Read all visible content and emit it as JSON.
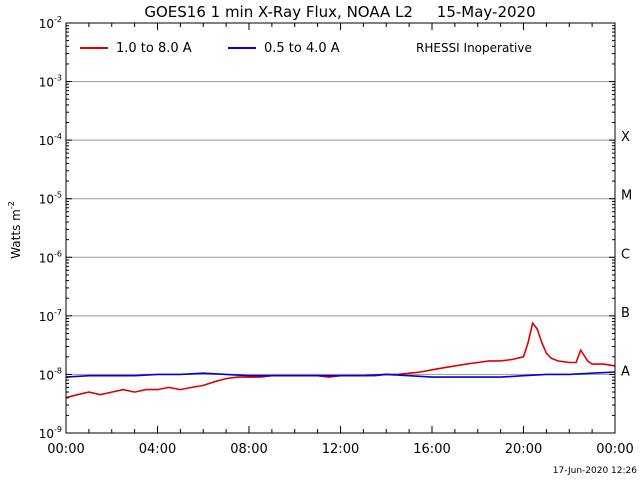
{
  "chart_data": {
    "type": "line",
    "title": "GOES16 1 min X-Ray Flux, NOAA L2     15-May-2020",
    "ylabel": "Watts m",
    "ylabel_sup": "-2",
    "xlabel": "",
    "y_scale": "log",
    "ylim": [
      1e-09,
      0.01
    ],
    "y_ticks": [
      {
        "value": 0.01,
        "base": "10",
        "exp": "-2"
      },
      {
        "value": 0.001,
        "base": "10",
        "exp": "-3"
      },
      {
        "value": 0.0001,
        "base": "10",
        "exp": "-4"
      },
      {
        "value": 1e-05,
        "base": "10",
        "exp": "-5"
      },
      {
        "value": 1e-06,
        "base": "10",
        "exp": "-6"
      },
      {
        "value": 1e-07,
        "base": "10",
        "exp": "-7"
      },
      {
        "value": 1e-08,
        "base": "10",
        "exp": "-8"
      },
      {
        "value": 1e-09,
        "base": "10",
        "exp": "-9"
      }
    ],
    "x_ticks": [
      {
        "hour": 0,
        "label": "00:00"
      },
      {
        "hour": 4,
        "label": "04:00"
      },
      {
        "hour": 8,
        "label": "08:00"
      },
      {
        "hour": 12,
        "label": "12:00"
      },
      {
        "hour": 16,
        "label": "16:00"
      },
      {
        "hour": 20,
        "label": "20:00"
      },
      {
        "hour": 24,
        "label": "00:00"
      }
    ],
    "xlim_hours": [
      0,
      24
    ],
    "flare_classes": [
      {
        "label": "X",
        "value": 0.0001
      },
      {
        "label": "M",
        "value": 1e-05
      },
      {
        "label": "C",
        "value": 1e-06
      },
      {
        "label": "B",
        "value": 1e-07
      },
      {
        "label": "A",
        "value": 1e-08
      }
    ],
    "grid_lines": [
      0.001,
      0.0001,
      1e-05,
      1e-06,
      1e-07,
      1e-08
    ],
    "legend_placement": "top",
    "annotation": "RHESSI Inoperative",
    "footer_timestamp": "17-Jun-2020 12:26",
    "series": [
      {
        "name": "1.0 to 8.0 A",
        "color": "#e00000",
        "x_hours": [
          0,
          0.5,
          1,
          1.5,
          2,
          2.5,
          3,
          3.5,
          4,
          4.5,
          5,
          5.5,
          6,
          6.5,
          7,
          7.5,
          8,
          8.5,
          9,
          9.5,
          10,
          10.5,
          11,
          11.5,
          12,
          12.5,
          13,
          13.5,
          14,
          14.5,
          15,
          15.5,
          16,
          16.5,
          17,
          17.5,
          18,
          18.5,
          19,
          19.5,
          20,
          20.2,
          20.4,
          20.6,
          20.8,
          21,
          21.2,
          21.5,
          22,
          22.3,
          22.5,
          22.8,
          23,
          23.5,
          24
        ],
        "values": [
          4e-09,
          4.5e-09,
          5e-09,
          4.5e-09,
          5e-09,
          5.5e-09,
          5e-09,
          5.5e-09,
          5.5e-09,
          6e-09,
          5.5e-09,
          6e-09,
          6.5e-09,
          7.5e-09,
          8.5e-09,
          9e-09,
          9e-09,
          9e-09,
          9.5e-09,
          9.5e-09,
          9.5e-09,
          9.5e-09,
          9.5e-09,
          9e-09,
          9.5e-09,
          9.5e-09,
          9.5e-09,
          9.5e-09,
          1e-08,
          1e-08,
          1.05e-08,
          1.1e-08,
          1.2e-08,
          1.3e-08,
          1.4e-08,
          1.5e-08,
          1.6e-08,
          1.7e-08,
          1.7e-08,
          1.8e-08,
          2e-08,
          3.5e-08,
          7.5e-08,
          6e-08,
          3.5e-08,
          2.3e-08,
          1.9e-08,
          1.7e-08,
          1.6e-08,
          1.6e-08,
          2.6e-08,
          1.7e-08,
          1.5e-08,
          1.5e-08,
          1.4e-08
        ]
      },
      {
        "name": "0.5 to 4.0 A",
        "color": "#0000e0",
        "x_hours": [
          0,
          1,
          2,
          3,
          4,
          5,
          6,
          7,
          8,
          9,
          10,
          11,
          12,
          13,
          14,
          15,
          16,
          17,
          18,
          19,
          20,
          21,
          22,
          23,
          24
        ],
        "values": [
          9e-09,
          9.5e-09,
          9.5e-09,
          9.5e-09,
          1e-08,
          1e-08,
          1.05e-08,
          1e-08,
          9.5e-09,
          9.5e-09,
          9.5e-09,
          9.5e-09,
          9.5e-09,
          9.5e-09,
          1e-08,
          9.5e-09,
          9e-09,
          9e-09,
          9e-09,
          9e-09,
          9.5e-09,
          1e-08,
          1e-08,
          1.05e-08,
          1.1e-08
        ]
      }
    ]
  }
}
